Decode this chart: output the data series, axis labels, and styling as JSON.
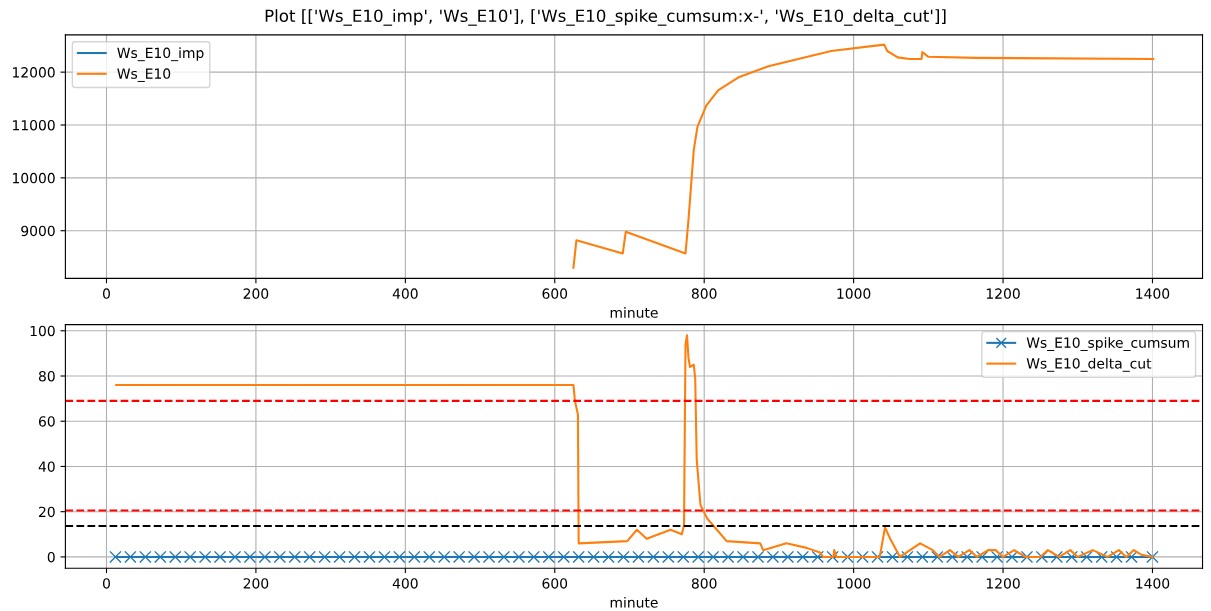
{
  "chart_data": [
    {
      "type": "line",
      "title": "Plot [['Ws_E10_imp', 'Ws_E10'], ['Ws_E10_spike_cumsum:x-', 'Ws_E10_delta_cut']]",
      "xlabel": "minute",
      "xlim": [
        -55,
        1467
      ],
      "xticks": [
        0,
        200,
        400,
        600,
        800,
        1000,
        1200,
        1400
      ],
      "ylim": [
        8098,
        12706
      ],
      "yticks": [
        9000,
        10000,
        11000,
        12000
      ],
      "grid": true,
      "legend": "top left",
      "series": [
        {
          "name": "Ws_E10_imp",
          "color": "#1f77b4"
        },
        {
          "name": "Ws_E10",
          "color": "#ff7f0e",
          "x": [
            625,
            629,
            691,
            695,
            775,
            779,
            786,
            791,
            803,
            819,
            847,
            886,
            970,
            1041,
            1045,
            1059,
            1075,
            1091,
            1092,
            1100,
            1164,
            1401
          ],
          "values": [
            8300,
            8820,
            8570,
            8980,
            8570,
            9210,
            10520,
            10970,
            11370,
            11660,
            11910,
            12110,
            12400,
            12520,
            12400,
            12280,
            12250,
            12250,
            12380,
            12290,
            12270,
            12250
          ]
        }
      ]
    },
    {
      "type": "line",
      "xlabel": "minute",
      "xlim": [
        -55,
        1467
      ],
      "xticks": [
        0,
        200,
        400,
        600,
        800,
        1000,
        1200,
        1400
      ],
      "ylim": [
        -5,
        102.7
      ],
      "yticks": [
        0,
        20,
        40,
        60,
        80,
        100
      ],
      "grid": true,
      "legend": "top right",
      "ref_lines": [
        {
          "axis": "y",
          "value": 69,
          "color": "#ff0000",
          "line_style": "dashed"
        },
        {
          "axis": "y",
          "value": 20.5,
          "color": "#ff0000",
          "line_style": "dashed"
        },
        {
          "axis": "y",
          "value": 13.7,
          "color": "#000000",
          "line_style": "dashed"
        }
      ],
      "series": [
        {
          "name": "Ws_E10_spike_cumsum",
          "color": "#1f77b4",
          "marker": "cross",
          "x": [
            12,
            32,
            52,
            72,
            92,
            112,
            132,
            152,
            172,
            192,
            212,
            232,
            252,
            272,
            292,
            312,
            332,
            352,
            372,
            392,
            412,
            432,
            452,
            472,
            492,
            512,
            532,
            552,
            572,
            592,
            612,
            632,
            652,
            672,
            692,
            712,
            732,
            752,
            772,
            792,
            812,
            832,
            852,
            872,
            892,
            912,
            932,
            952,
            972,
            992,
            1012,
            1032,
            1052,
            1072,
            1092,
            1112,
            1132,
            1152,
            1172,
            1192,
            1212,
            1232,
            1252,
            1272,
            1292,
            1312,
            1332,
            1352,
            1372,
            1400
          ],
          "values": [
            0,
            0,
            0,
            0,
            0,
            0,
            0,
            0,
            0,
            0,
            0,
            0,
            0,
            0,
            0,
            0,
            0,
            0,
            0,
            0,
            0,
            0,
            0,
            0,
            0,
            0,
            0,
            0,
            0,
            0,
            0,
            0,
            0,
            0,
            0,
            0,
            0,
            0,
            0,
            0,
            0,
            0,
            0,
            0,
            0,
            0,
            0,
            0,
            0,
            0,
            0,
            0,
            0,
            0,
            0,
            0,
            0,
            0,
            0,
            0,
            0,
            0,
            0,
            0,
            0,
            0,
            0,
            0,
            0,
            0
          ]
        },
        {
          "name": "Ws_E10_delta_cut",
          "color": "#ff7f0e",
          "x": [
            13,
            625,
            627,
            631,
            632,
            697,
            710,
            723,
            755,
            770,
            773,
            775,
            777,
            779,
            781,
            786,
            788,
            790,
            795,
            804,
            817,
            830,
            875,
            879,
            910,
            937,
            955,
            959,
            973,
            974,
            977,
            1035,
            1042,
            1049,
            1062,
            1089,
            1106,
            1115,
            1129,
            1140,
            1155,
            1165,
            1180,
            1190,
            1200,
            1215,
            1230,
            1250,
            1260,
            1275,
            1290,
            1300,
            1320,
            1340,
            1355,
            1365,
            1375,
            1385,
            1400
          ],
          "values": [
            76,
            76,
            69,
            63,
            6,
            7,
            12,
            8,
            12,
            10,
            14,
            94,
            98,
            88,
            84,
            85,
            79,
            43,
            23,
            17,
            12,
            7,
            6,
            3,
            6,
            4,
            2,
            0,
            0,
            3,
            0,
            0,
            13,
            8,
            0,
            6,
            3,
            0,
            3,
            0,
            3,
            0,
            3,
            3,
            0,
            3,
            0,
            0,
            3,
            0,
            3,
            0,
            3,
            0,
            3,
            0,
            3,
            1,
            0
          ]
        }
      ]
    }
  ]
}
